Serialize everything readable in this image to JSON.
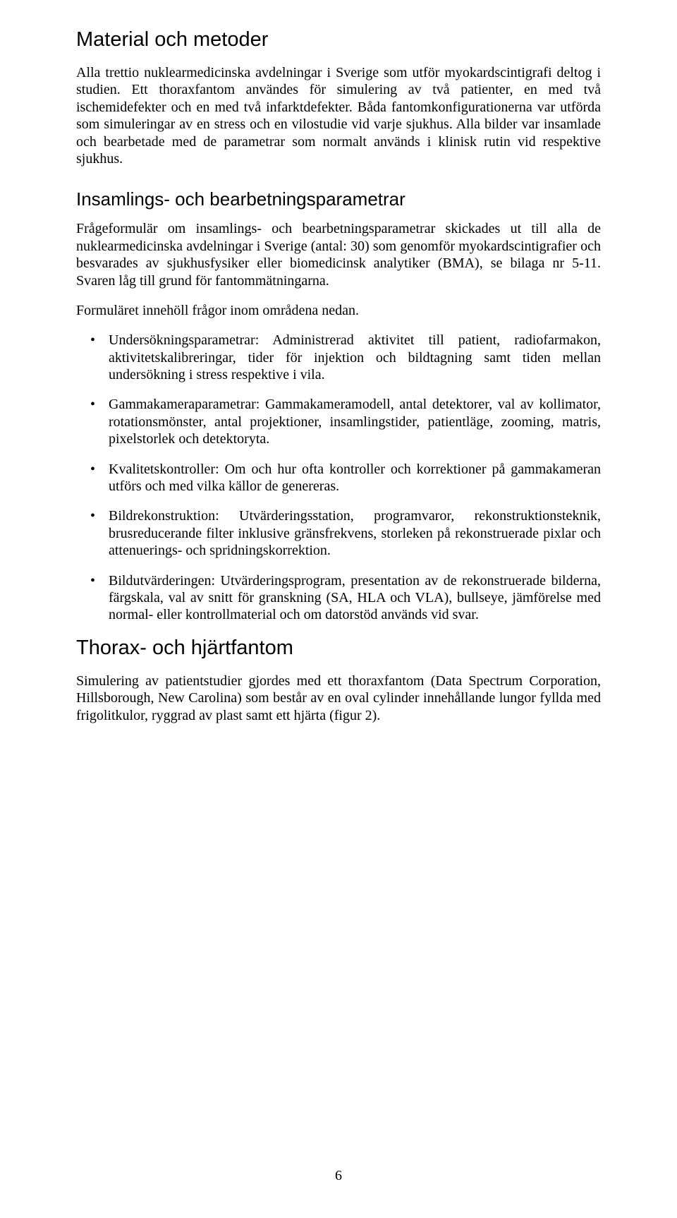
{
  "page": {
    "number": "6",
    "background_color": "#ffffff",
    "text_color": "#000000"
  },
  "typography": {
    "heading_font": "Arial",
    "heading_h1_size_pt": 22,
    "heading_h2_size_pt": 19,
    "body_font": "Times New Roman",
    "body_size_pt": 15,
    "line_height": 1.22,
    "justify": true
  },
  "sections": {
    "s1": {
      "title": "Material och metoder",
      "p1": "Alla trettio nuklearmedicinska avdelningar i Sverige som utför myokardscintigrafi deltog i studien. Ett thoraxfantom användes för simulering av två patienter, en med två ischemidefekter och en med två infarktdefekter. Båda fantomkonfigurationerna var utförda som simuleringar av en stress och en vilostudie vid varje sjukhus. Alla bilder var insamlade och bearbetade med de parametrar som normalt används i klinisk rutin vid respektive sjukhus."
    },
    "s2": {
      "title": "Insamlings- och bearbetningsparametrar",
      "p1": "Frågeformulär om insamlings- och bearbetningsparametrar skickades ut till alla de nuklearmedicinska avdelningar i Sverige (antal: 30) som genomför myokardscintigrafier och besvarades av sjukhusfysiker eller biomedicinsk analytiker (BMA), se bilaga nr 5-11. Svaren låg till grund för fantommätningarna.",
      "p2": "Formuläret innehöll frågor inom områdena nedan.",
      "bullets": {
        "b1": "Undersökningsparametrar: Administrerad aktivitet till patient, radiofarmakon, aktivitetskalibreringar, tider för injektion och bildtagning samt tiden mellan undersökning i stress respektive i vila.",
        "b2": "Gammakameraparametrar: Gammakameramodell, antal detektorer, val av kollimator, rotationsmönster, antal projektioner, insamlingstider, patientläge, zooming, matris, pixelstorlek och detektoryta.",
        "b3": "Kvalitetskontroller: Om och hur ofta kontroller och korrektioner på gammakameran utförs och med vilka källor de genereras.",
        "b4": "Bildrekonstruktion: Utvärderingsstation, programvaror, rekonstruktionsteknik, brusreducerande filter inklusive gränsfrekvens, storleken på rekonstruerade pixlar och attenuerings- och spridningskorrektion.",
        "b5": "Bildutvärderingen: Utvärderingsprogram, presentation av de rekonstruerade bilderna, färgskala, val av snitt för granskning (SA, HLA och VLA), bullseye, jämförelse med normal- eller kontrollmaterial och om datorstöd används vid svar."
      }
    },
    "s3": {
      "title": "Thorax- och hjärtfantom",
      "p1": "Simulering av patientstudier gjordes med ett thoraxfantom (Data Spectrum Corporation, Hillsborough, New Carolina) som består av en oval cylinder innehållande lungor fyllda med frigolitkulor, ryggrad av plast samt ett hjärta (figur 2)."
    }
  }
}
